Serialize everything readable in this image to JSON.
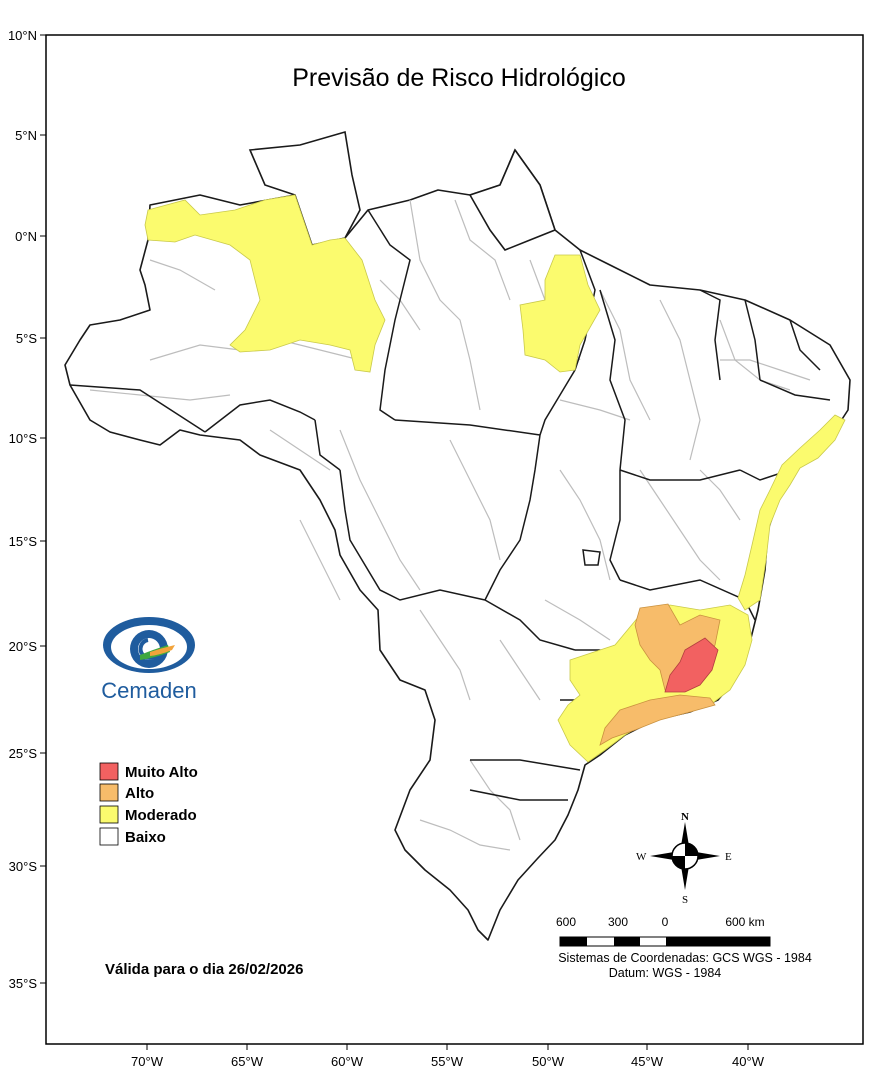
{
  "map": {
    "title": "Previsão de Risco Hidrológico",
    "lat_ticks": [
      "10°N",
      "5°N",
      "0°N",
      "5°S",
      "10°S",
      "15°S",
      "20°S",
      "25°S",
      "30°S",
      "35°S"
    ],
    "lon_ticks": [
      "70°W",
      "65°W",
      "60°W",
      "55°W",
      "50°W",
      "45°W",
      "40°W"
    ],
    "valid_label": "Válida para o dia 26/02/2026",
    "coords_system": "Sistemas de Coordenadas: GCS WGS - 1984",
    "datum": "Datum: WGS - 1984",
    "logo_text": "Cemaden",
    "compass": {
      "n": "N",
      "s": "S",
      "e": "E",
      "w": "W"
    },
    "scale_labels": [
      "600",
      "300",
      "0",
      "600 km"
    ]
  },
  "legend": [
    {
      "label": "Muito Alto",
      "color": "#f26161"
    },
    {
      "label": "Alto",
      "color": "#f7bc6a"
    },
    {
      "label": "Moderado",
      "color": "#fbfb6e"
    },
    {
      "label": "Baixo",
      "color": "#ffffff"
    }
  ],
  "colors": {
    "frame": "#000000",
    "internal_border": "#bdbdbd",
    "state_border": "#1a1a1a"
  }
}
